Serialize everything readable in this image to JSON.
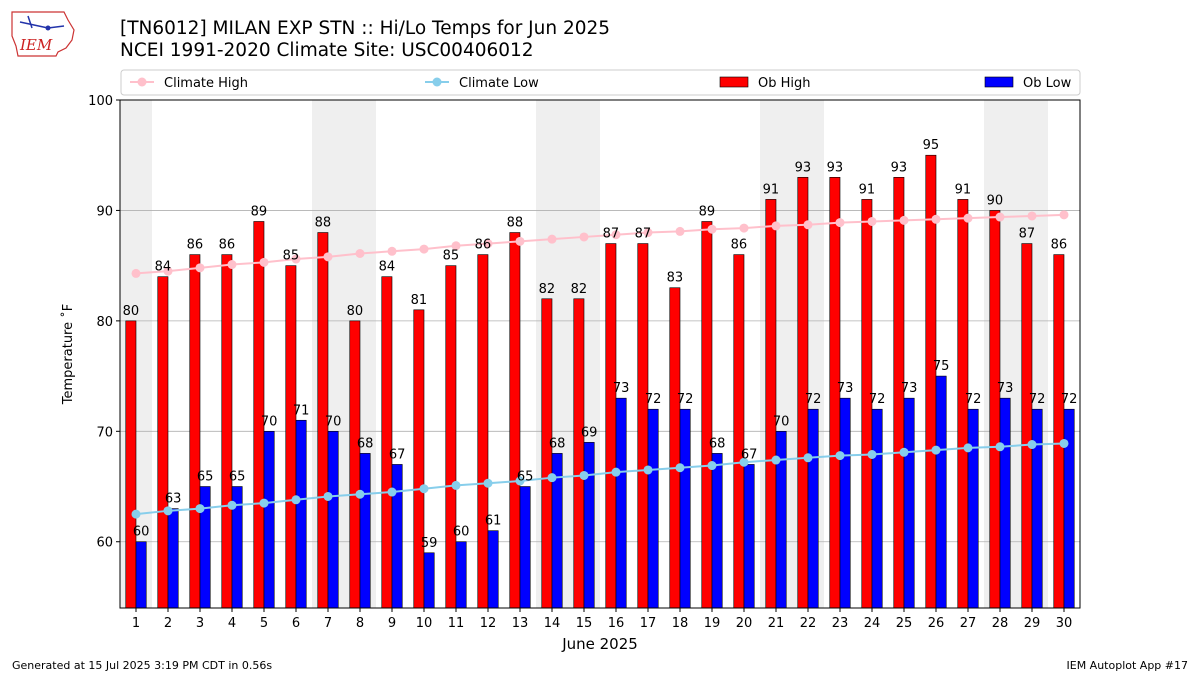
{
  "header": {
    "title_line1": "[TN6012] MILAN EXP STN :: Hi/Lo Temps for Jun 2025",
    "title_line2": "NCEI 1991-2020 Climate Site: USC00406012",
    "logo_text": "IEM"
  },
  "footer": {
    "left": "Generated at 15 Jul 2025 3:19 PM CDT in 0.56s",
    "right": "IEM Autoplot App #17"
  },
  "colors": {
    "ob_high": "#ff0000",
    "ob_low": "#0000ff",
    "climate_high": "#ffc0cb",
    "climate_low": "#87ceeb",
    "weekend_shade": "#efefef",
    "grid": "#b0b0b0"
  },
  "chart_data": {
    "type": "bar",
    "xlabel": "June 2025",
    "ylabel": "Temperature ˚F",
    "ylim": [
      54,
      100
    ],
    "yticks": [
      60,
      70,
      80,
      90,
      100
    ],
    "grid": "horizontal",
    "legend_position": "top",
    "categories": [
      "1",
      "2",
      "3",
      "4",
      "5",
      "6",
      "7",
      "8",
      "9",
      "10",
      "11",
      "12",
      "13",
      "14",
      "15",
      "16",
      "17",
      "18",
      "19",
      "20",
      "21",
      "22",
      "23",
      "24",
      "25",
      "26",
      "27",
      "28",
      "29",
      "30"
    ],
    "shaded_days": [
      1,
      7,
      8,
      14,
      15,
      21,
      22,
      28,
      29
    ],
    "series": [
      {
        "name": "Climate High",
        "type": "line",
        "values": [
          84.3,
          84.5,
          84.8,
          85.1,
          85.3,
          85.6,
          85.8,
          86.1,
          86.3,
          86.5,
          86.8,
          87.0,
          87.2,
          87.4,
          87.6,
          87.8,
          88.0,
          88.1,
          88.3,
          88.4,
          88.6,
          88.7,
          88.9,
          89.0,
          89.1,
          89.2,
          89.3,
          89.4,
          89.5,
          89.6
        ]
      },
      {
        "name": "Climate Low",
        "type": "line",
        "values": [
          62.5,
          62.8,
          63.0,
          63.3,
          63.5,
          63.8,
          64.1,
          64.3,
          64.5,
          64.8,
          65.1,
          65.3,
          65.5,
          65.8,
          66.0,
          66.3,
          66.5,
          66.7,
          66.9,
          67.2,
          67.4,
          67.6,
          67.8,
          67.9,
          68.1,
          68.3,
          68.5,
          68.6,
          68.8,
          68.9
        ]
      },
      {
        "name": "Ob High",
        "type": "bar",
        "values": [
          80,
          84,
          86,
          86,
          89,
          85,
          88,
          80,
          84,
          81,
          85,
          86,
          88,
          82,
          82,
          87,
          87,
          83,
          89,
          86,
          91,
          93,
          93,
          91,
          93,
          95,
          91,
          90,
          87,
          86
        ]
      },
      {
        "name": "Ob Low",
        "type": "bar",
        "values": [
          60,
          63,
          65,
          65,
          70,
          71,
          70,
          68,
          67,
          59,
          60,
          61,
          65,
          68,
          69,
          73,
          72,
          72,
          68,
          67,
          70,
          72,
          73,
          72,
          73,
          75,
          72,
          73,
          72,
          72
        ]
      }
    ]
  }
}
